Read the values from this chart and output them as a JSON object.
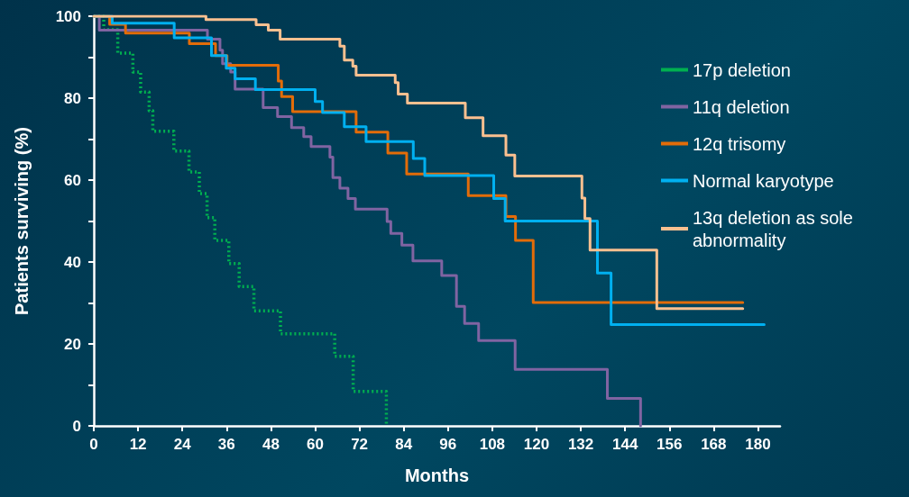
{
  "chart_data": {
    "type": "step",
    "xlabel": "Months",
    "ylabel": "Patients surviving (%)",
    "xlim": [
      0,
      186
    ],
    "ylim": [
      0,
      100
    ],
    "xticks": [
      0,
      12,
      24,
      36,
      48,
      60,
      72,
      84,
      96,
      108,
      120,
      132,
      144,
      156,
      168,
      180
    ],
    "yticks": [
      0,
      {
        "value": 10,
        "label": null
      },
      20,
      {
        "value": 30,
        "label": null
      },
      40,
      {
        "value": 50,
        "label": null
      },
      60,
      {
        "value": 70,
        "label": null
      },
      80,
      {
        "value": 90,
        "label": null
      },
      100
    ],
    "grid": false,
    "legend": "top right",
    "marker": "none",
    "series": [
      {
        "name": "17p deletion",
        "color": "#00b050",
        "line_style": "dotted",
        "x": [
          0,
          2.7,
          6.5,
          10.6,
          12.7,
          15,
          16,
          21.7,
          25.8,
          28.6,
          30.7,
          32.8,
          36.6,
          39.4,
          43.4,
          50.6,
          65.3,
          70.3,
          79.3
        ],
        "values": [
          100,
          96.7,
          91,
          86.4,
          81.5,
          76.9,
          71.9,
          67.1,
          62,
          56.7,
          50.8,
          45.3,
          39.6,
          34,
          28.1,
          22.5,
          17,
          8.4,
          0
        ]
      },
      {
        "name": "11q deletion",
        "color": "#8064a2",
        "line_style": "solid",
        "x": [
          0,
          1.5,
          30.8,
          34.2,
          34.9,
          37.1,
          38.3,
          45.9,
          49.8,
          53.6,
          56.9,
          58.9,
          64,
          64.8,
          66.7,
          68.9,
          70.9,
          79.5,
          80.5,
          83.5,
          86.5,
          94.3,
          98.3,
          100.5,
          104.3,
          114.2,
          139.2,
          148.2
        ],
        "values": [
          100,
          96.6,
          94.4,
          91.7,
          88.4,
          86.4,
          82.2,
          77.7,
          75.5,
          72.8,
          70.6,
          68.2,
          65.6,
          60.6,
          58,
          55.5,
          52.9,
          49.9,
          47,
          44.1,
          40.3,
          36.7,
          29.2,
          25,
          20.8,
          13.8,
          6.7,
          0
        ]
      },
      {
        "name": "12q trisomy",
        "color": "#e36c09",
        "line_style": "solid",
        "x": [
          0,
          4.3,
          8.6,
          25.9,
          33,
          36.1,
          50,
          50.9,
          53.9,
          71.1,
          79.7,
          84.8,
          101.5,
          111.7,
          114.3,
          119.1,
          175.9
        ],
        "values": [
          100,
          98,
          95.9,
          93.3,
          90.4,
          88,
          84.2,
          80.4,
          76.7,
          71.7,
          66.6,
          61.5,
          56.2,
          51.1,
          45.3,
          30.1,
          30.1
        ]
      },
      {
        "name": "Normal karyotype",
        "color": "#00b0f0",
        "line_style": "solid",
        "x": [
          0,
          5,
          21.8,
          31.9,
          35.9,
          38.3,
          43.8,
          60,
          62,
          67.9,
          73.8,
          86.6,
          89.7,
          108.4,
          111.5,
          136.5,
          140.2,
          181.7
        ],
        "values": [
          100,
          98.3,
          94.7,
          90.4,
          87.3,
          84.7,
          82.1,
          79.2,
          76.5,
          73,
          69.4,
          65.3,
          61.1,
          55.5,
          50,
          37.3,
          24.7,
          24.7
        ]
      },
      {
        "name": "13q deletion as sole abnormality",
        "color": "#fac090",
        "line_style": "solid",
        "x": [
          0,
          30.4,
          44,
          47.3,
          50.5,
          66.7,
          67.9,
          70.2,
          71.1,
          81.7,
          82.5,
          85,
          100.7,
          105.5,
          111.7,
          114.1,
          132.3,
          133.1,
          134.5,
          152.6,
          175.9
        ],
        "values": [
          100,
          99.2,
          97.9,
          96.6,
          94.4,
          92.7,
          89.3,
          87.8,
          85.6,
          83.8,
          81,
          78.8,
          75.2,
          70.8,
          66.1,
          61,
          55.6,
          50.6,
          42.9,
          28.6,
          28.6
        ]
      }
    ]
  }
}
